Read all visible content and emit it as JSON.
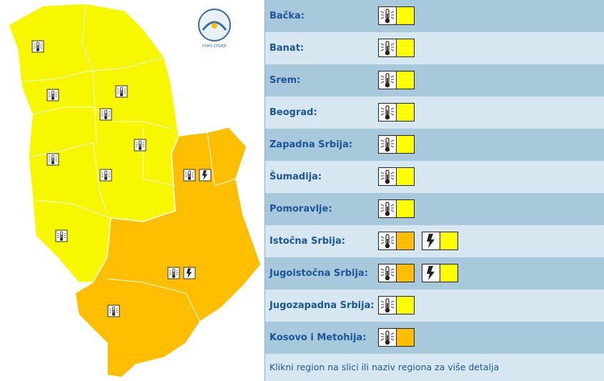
{
  "logo_text": "РХМЗ СРБИЈЕ",
  "regions": [
    {
      "name": "Bačka:",
      "warnings": [
        {
          "type": "heat",
          "color": "#ffff00"
        }
      ]
    },
    {
      "name": "Banat:",
      "warnings": [
        {
          "type": "heat",
          "color": "#ffff00"
        }
      ]
    },
    {
      "name": "Srem:",
      "warnings": [
        {
          "type": "heat",
          "color": "#ffff00"
        }
      ]
    },
    {
      "name": "Beograd:",
      "warnings": [
        {
          "type": "heat",
          "color": "#ffff00"
        }
      ]
    },
    {
      "name": "Zapadna Srbija:",
      "warnings": [
        {
          "type": "heat",
          "color": "#ffff00"
        }
      ]
    },
    {
      "name": "Šumadija:",
      "warnings": [
        {
          "type": "heat",
          "color": "#ffff00"
        }
      ]
    },
    {
      "name": "Pomoravlje:",
      "warnings": [
        {
          "type": "heat",
          "color": "#ffff00"
        }
      ]
    },
    {
      "name": "Istočna Srbija:",
      "warnings": [
        {
          "type": "heat",
          "color": "#ffbf00"
        },
        {
          "type": "storm",
          "color": "#ffff00"
        }
      ]
    },
    {
      "name": "Jugoistočna Srbija:",
      "warnings": [
        {
          "type": "heat",
          "color": "#ffbf00"
        },
        {
          "type": "storm",
          "color": "#ffff00"
        }
      ]
    },
    {
      "name": "Jugozapadna Srbija:",
      "warnings": [
        {
          "type": "heat",
          "color": "#ffff00"
        }
      ]
    },
    {
      "name": "Kosovo i Metohija:",
      "warnings": [
        {
          "type": "heat",
          "color": "#ffbf00"
        }
      ]
    }
  ],
  "footer": "Klikni region na slici ili naziv regiona za više detalja"
}
